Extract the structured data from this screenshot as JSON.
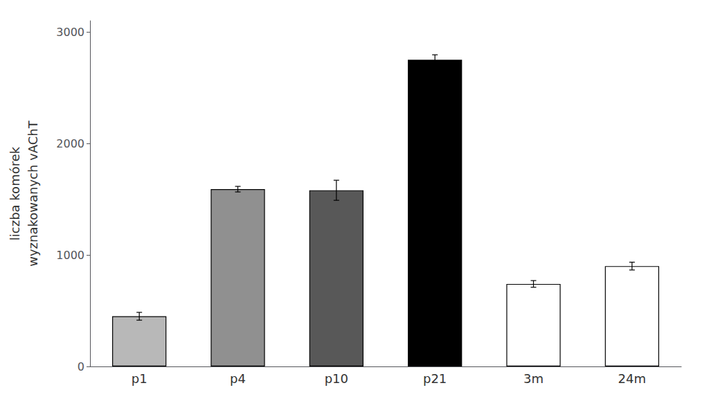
{
  "chart_data": {
    "type": "bar",
    "categories": [
      "p1",
      "p4",
      "p10",
      "p21",
      "3m",
      "24m"
    ],
    "values": [
      450,
      1590,
      1580,
      2750,
      740,
      900
    ],
    "errors": [
      35,
      25,
      90,
      45,
      30,
      35
    ],
    "colors": [
      "#b8b8b8",
      "#909090",
      "#585858",
      "#000000",
      "#ffffff",
      "#ffffff"
    ],
    "ylabel": "liczba komórek\nwyznakowanych vAChT",
    "ylim": [
      0,
      3100
    ],
    "yticks": [
      0,
      1000,
      2000,
      3000
    ],
    "grid": false
  }
}
